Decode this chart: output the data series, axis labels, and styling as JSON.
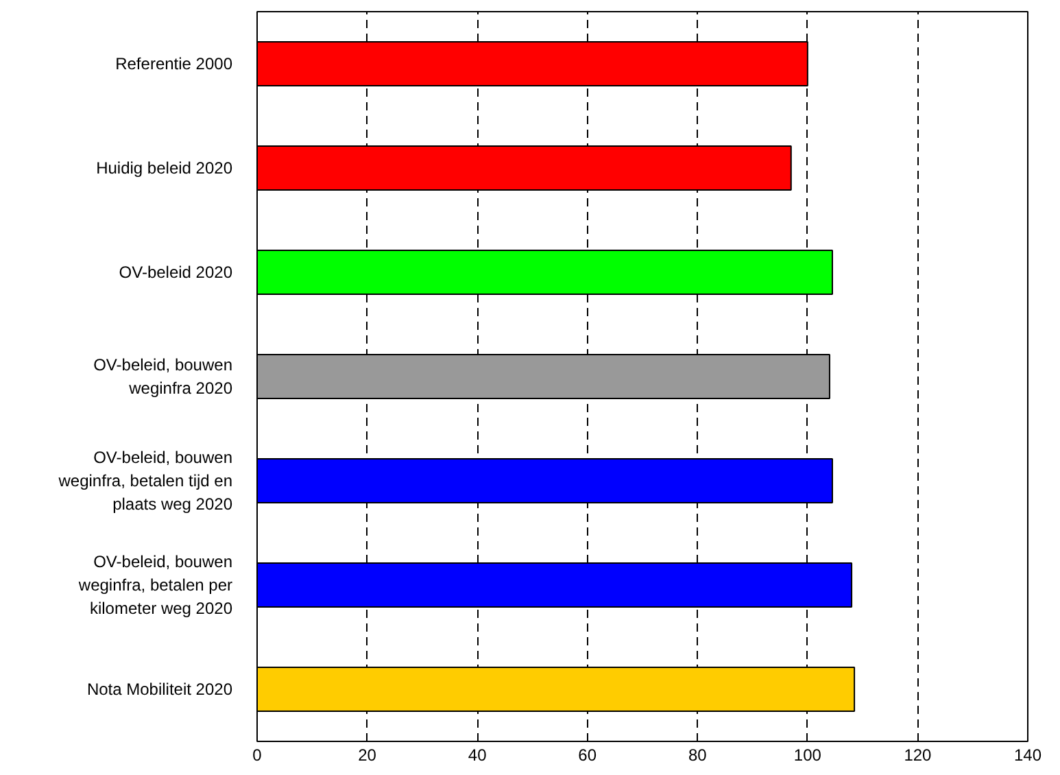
{
  "chart_data": {
    "type": "bar",
    "orientation": "horizontal",
    "categories": [
      "Referentie 2000",
      "Huidig beleid 2020",
      "OV-beleid 2020",
      "OV-beleid, bouwen\nweginfra 2020",
      "OV-beleid, bouwen\nweginfra, betalen tijd en\nplaats weg 2020",
      "OV-beleid, bouwen\nweginfra, betalen per\nkilometer weg 2020",
      "Nota Mobiliteit 2020"
    ],
    "values": [
      100,
      97,
      104.5,
      104,
      104.5,
      108,
      108.5
    ],
    "colors": [
      "#ff0000",
      "#ff0000",
      "#00ff00",
      "#999999",
      "#0000ff",
      "#0000ff",
      "#ffcc00"
    ],
    "xlim": [
      0,
      140
    ],
    "xticks": [
      0,
      20,
      40,
      60,
      80,
      100,
      120,
      140
    ],
    "grid": "x"
  }
}
